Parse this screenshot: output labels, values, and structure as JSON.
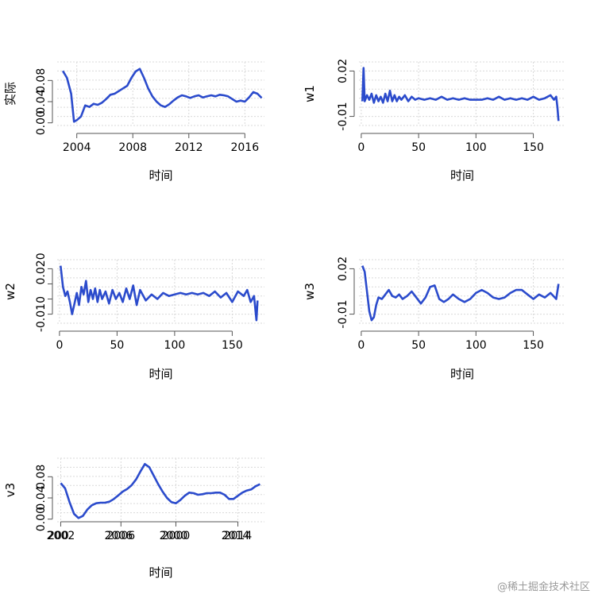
{
  "watermark": "@稀土掘金技术社区",
  "chart_data": [
    {
      "type": "line",
      "xlabel": "时间",
      "ylabel": "实际",
      "xlim": [
        2002.6,
        2017.4
      ],
      "ylim": [
        -0.005,
        0.115
      ],
      "xticks": [
        2004,
        2008,
        2012,
        2016
      ],
      "yticks": [
        0.0,
        0.04,
        0.08
      ],
      "ytick_labels": [
        "0.00",
        "0.04",
        "0.08"
      ],
      "grid": true,
      "color": "#2b4bcc",
      "series": [
        {
          "x": [
            2003.0,
            2003.3,
            2003.6,
            2003.8,
            2004.0,
            2004.3,
            2004.6,
            2004.9,
            2005.2,
            2005.5,
            2005.8,
            2006.1,
            2006.4,
            2006.7,
            2007.0,
            2007.3,
            2007.6,
            2007.9,
            2008.2,
            2008.5,
            2008.8,
            2009.1,
            2009.4,
            2009.7,
            2010.0,
            2010.3,
            2010.6,
            2010.9,
            2011.2,
            2011.5,
            2011.8,
            2012.1,
            2012.4,
            2012.7,
            2013.0,
            2013.3,
            2013.6,
            2013.9,
            2014.2,
            2014.5,
            2014.8,
            2015.1,
            2015.4,
            2015.7,
            2016.0,
            2016.3,
            2016.6,
            2016.9,
            2017.2
          ],
          "y": [
            0.098,
            0.085,
            0.055,
            0.002,
            0.005,
            0.012,
            0.033,
            0.03,
            0.036,
            0.034,
            0.038,
            0.045,
            0.053,
            0.055,
            0.06,
            0.065,
            0.07,
            0.085,
            0.097,
            0.102,
            0.085,
            0.065,
            0.05,
            0.04,
            0.033,
            0.03,
            0.035,
            0.042,
            0.048,
            0.052,
            0.05,
            0.047,
            0.05,
            0.052,
            0.048,
            0.05,
            0.052,
            0.05,
            0.053,
            0.052,
            0.05,
            0.045,
            0.04,
            0.042,
            0.04,
            0.048,
            0.058,
            0.055,
            0.047
          ]
        }
      ]
    },
    {
      "type": "line",
      "xlabel": "时间",
      "ylabel": "w1",
      "xlim": [
        -2,
        178
      ],
      "ylim": [
        -0.016,
        0.026
      ],
      "xticks": [
        0,
        50,
        100,
        150
      ],
      "yticks": [
        -0.01,
        0.02
      ],
      "ytick_labels": [
        "-0.01",
        "0.02"
      ],
      "grid": true,
      "color": "#2b4bcc",
      "series": [
        {
          "x": [
            1,
            2,
            3,
            5,
            7,
            9,
            11,
            13,
            15,
            17,
            19,
            21,
            23,
            25,
            27,
            29,
            31,
            33,
            35,
            38,
            41,
            44,
            47,
            50,
            55,
            60,
            65,
            70,
            75,
            80,
            85,
            90,
            95,
            100,
            105,
            110,
            115,
            120,
            125,
            130,
            135,
            140,
            145,
            150,
            155,
            160,
            165,
            168,
            170,
            171,
            172
          ],
          "y": [
            0.0,
            0.022,
            0.0,
            0.004,
            0.001,
            0.005,
            -0.001,
            0.004,
            0.0,
            0.003,
            -0.001,
            0.005,
            0.0,
            0.007,
            0.0,
            0.004,
            0.0,
            0.003,
            0.001,
            0.004,
            0.0,
            0.003,
            0.001,
            0.002,
            0.001,
            0.002,
            0.001,
            0.003,
            0.001,
            0.002,
            0.001,
            0.002,
            0.001,
            0.001,
            0.001,
            0.002,
            0.001,
            0.003,
            0.001,
            0.002,
            0.001,
            0.002,
            0.001,
            0.003,
            0.001,
            0.002,
            0.004,
            0.001,
            0.003,
            -0.004,
            -0.013
          ]
        }
      ]
    },
    {
      "type": "line",
      "xlabel": "时间",
      "ylabel": "w2",
      "xlim": [
        -2,
        178
      ],
      "ylim": [
        -0.016,
        0.026
      ],
      "xticks": [
        0,
        50,
        100,
        150
      ],
      "yticks": [
        -0.01,
        0.0,
        0.01,
        0.02
      ],
      "ytick_labels": [
        "-0.010",
        "",
        "",
        "0.020"
      ],
      "grid": true,
      "color": "#2b4bcc",
      "series": [
        {
          "x": [
            1,
            3,
            5,
            7,
            9,
            11,
            13,
            15,
            17,
            19,
            21,
            23,
            25,
            27,
            29,
            31,
            33,
            35,
            37,
            40,
            43,
            46,
            49,
            52,
            55,
            58,
            61,
            64,
            67,
            70,
            75,
            80,
            85,
            90,
            95,
            100,
            105,
            110,
            115,
            120,
            125,
            130,
            135,
            140,
            145,
            150,
            155,
            160,
            163,
            166,
            169,
            171,
            172
          ],
          "y": [
            0.022,
            0.008,
            0.002,
            0.005,
            -0.002,
            -0.01,
            -0.003,
            0.004,
            -0.004,
            0.008,
            0.003,
            0.012,
            -0.002,
            0.006,
            0.0,
            0.007,
            -0.002,
            0.006,
            0.0,
            0.005,
            -0.003,
            0.006,
            0.0,
            0.004,
            -0.002,
            0.007,
            0.0,
            0.009,
            -0.004,
            0.006,
            -0.001,
            0.003,
            0.0,
            0.004,
            0.002,
            0.003,
            0.004,
            0.003,
            0.004,
            0.003,
            0.004,
            0.002,
            0.005,
            0.001,
            0.004,
            -0.002,
            0.005,
            0.002,
            0.006,
            -0.002,
            0.002,
            -0.014,
            -0.001
          ]
        }
      ]
    },
    {
      "type": "line",
      "xlabel": "时间",
      "ylabel": "w3",
      "xlim": [
        -2,
        178
      ],
      "ylim": [
        -0.016,
        0.026
      ],
      "xticks": [
        0,
        50,
        100,
        150
      ],
      "yticks": [
        -0.01,
        0.02
      ],
      "ytick_labels": [
        "-0.01",
        "0.02"
      ],
      "grid": true,
      "color": "#2b4bcc",
      "series": [
        {
          "x": [
            1,
            3,
            5,
            7,
            9,
            11,
            13,
            15,
            18,
            21,
            24,
            27,
            30,
            33,
            36,
            40,
            44,
            48,
            52,
            56,
            60,
            64,
            68,
            72,
            76,
            80,
            85,
            90,
            95,
            100,
            105,
            110,
            115,
            120,
            125,
            130,
            135,
            140,
            145,
            150,
            155,
            160,
            165,
            170,
            172
          ],
          "y": [
            0.022,
            0.018,
            0.005,
            -0.008,
            -0.014,
            -0.012,
            -0.004,
            0.001,
            0.0,
            0.003,
            0.006,
            0.002,
            0.001,
            0.003,
            0.0,
            0.002,
            0.005,
            0.001,
            -0.003,
            0.001,
            0.008,
            0.009,
            0.0,
            -0.002,
            0.0,
            0.003,
            0.0,
            -0.002,
            0.0,
            0.004,
            0.006,
            0.004,
            0.001,
            0.0,
            0.001,
            0.004,
            0.006,
            0.006,
            0.003,
            0.0,
            0.003,
            0.001,
            0.004,
            0.0,
            0.01
          ]
        }
      ]
    },
    {
      "type": "line",
      "xlabel": "时间",
      "ylabel": "v3",
      "xlim": [
        1998.6,
        2022.0
      ],
      "ylim": [
        -0.005,
        0.115
      ],
      "xticks": [
        1999,
        2005.8,
        2012,
        2019
      ],
      "xtick_labels": [
        "2002",
        "2006",
        "2000",
        "2014"
      ],
      "overlap_xtick_labels": [
        "200",
        "2006",
        "2000",
        "2014"
      ],
      "yticks": [
        0.0,
        0.04,
        0.08
      ],
      "ytick_labels": [
        "0.00",
        "0.04",
        "0.08"
      ],
      "grid": true,
      "color": "#2b4bcc",
      "series": [
        {
          "x": [
            1999.0,
            1999.5,
            2000.0,
            2000.5,
            2001.0,
            2001.5,
            2002.0,
            2002.5,
            2003.0,
            2003.5,
            2004.0,
            2004.5,
            2005.0,
            2005.5,
            2006.0,
            2006.5,
            2007.0,
            2007.5,
            2008.0,
            2008.5,
            2009.0,
            2009.5,
            2010.0,
            2010.5,
            2011.0,
            2011.5,
            2012.0,
            2012.5,
            2013.0,
            2013.5,
            2014.0,
            2014.5,
            2015.0,
            2015.5,
            2016.0,
            2016.5,
            2017.0,
            2017.5,
            2018.0,
            2018.5,
            2019.0,
            2019.5,
            2020.0,
            2020.5,
            2021.0,
            2021.5
          ],
          "y": [
            0.068,
            0.058,
            0.032,
            0.01,
            0.002,
            0.006,
            0.018,
            0.026,
            0.03,
            0.031,
            0.031,
            0.033,
            0.038,
            0.045,
            0.052,
            0.057,
            0.064,
            0.075,
            0.09,
            0.104,
            0.098,
            0.082,
            0.066,
            0.052,
            0.04,
            0.032,
            0.03,
            0.036,
            0.044,
            0.05,
            0.049,
            0.046,
            0.047,
            0.049,
            0.049,
            0.05,
            0.05,
            0.046,
            0.038,
            0.038,
            0.044,
            0.05,
            0.054,
            0.056,
            0.062,
            0.066
          ]
        }
      ]
    }
  ]
}
